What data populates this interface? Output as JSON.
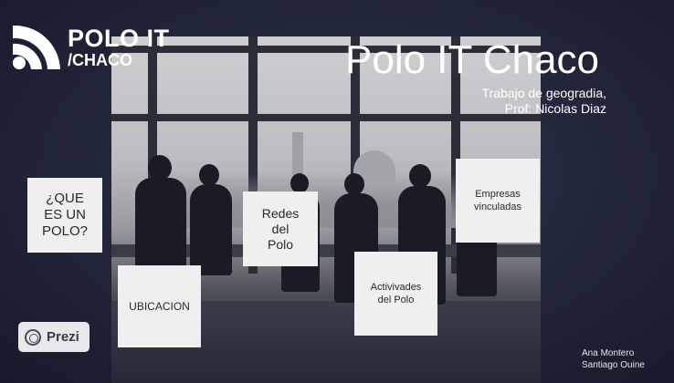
{
  "logo": {
    "title": "POLO IT",
    "subtitle": "/CHACO"
  },
  "presentation": {
    "title": "Polo IT Chaco",
    "subtitle_line1": "Trabajo de geogradia,",
    "subtitle_line2": "Prof: Nicolas Diaz"
  },
  "cards": {
    "que_line1": "¿QUE",
    "que_line2": "ES UN",
    "que_line3": "POLO?",
    "ubicacion": "UBICACION",
    "redes_line1": "Redes",
    "redes_line2": "del",
    "redes_line3": "Polo",
    "actividades_line1": "Activivades",
    "actividades_line2": "del Polo",
    "empresas_line1": "Empresas",
    "empresas_line2": "vinculadas"
  },
  "prezi": {
    "label": "Prezi"
  },
  "authors": {
    "author1": "Ana Montero",
    "author2": "Santiago Ouine"
  },
  "colors": {
    "background": "#1d2033",
    "card": "#f1eeef",
    "text_light": "#ffffff"
  }
}
